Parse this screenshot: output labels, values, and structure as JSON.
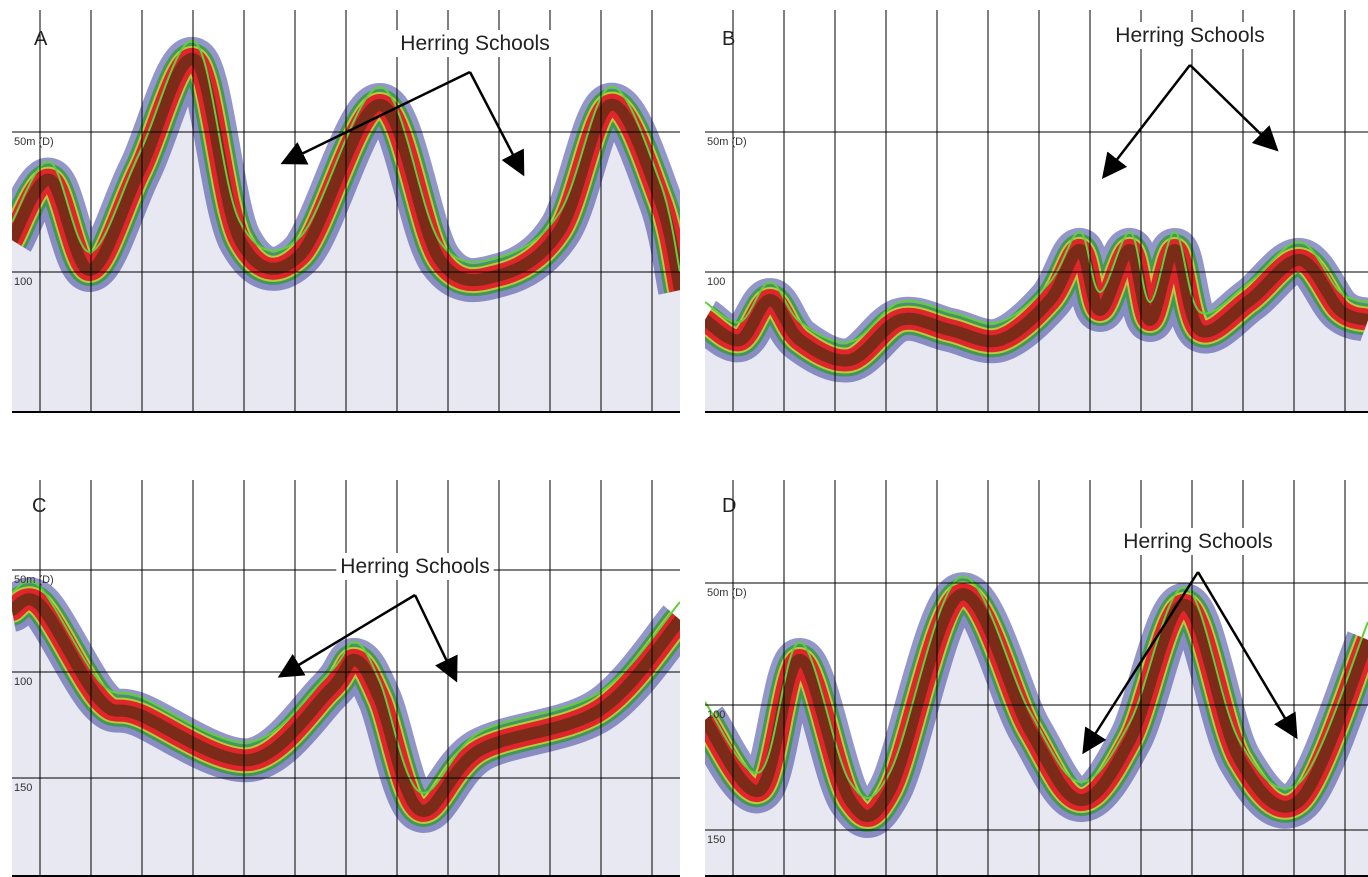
{
  "panels": [
    {
      "label": "A",
      "annotation": "Herring Schools",
      "depth_labels": [
        "50m (D)",
        "100"
      ]
    },
    {
      "label": "B",
      "annotation": "Herring Schools",
      "depth_labels": [
        "50m (D)",
        "100"
      ]
    },
    {
      "label": "C",
      "annotation": "Herring Schools",
      "depth_labels": [
        "50m (D)",
        "100",
        "150"
      ]
    },
    {
      "label": "D",
      "annotation": "Herring Schools",
      "depth_labels": [
        "50m (D)",
        "100",
        "150"
      ]
    }
  ]
}
